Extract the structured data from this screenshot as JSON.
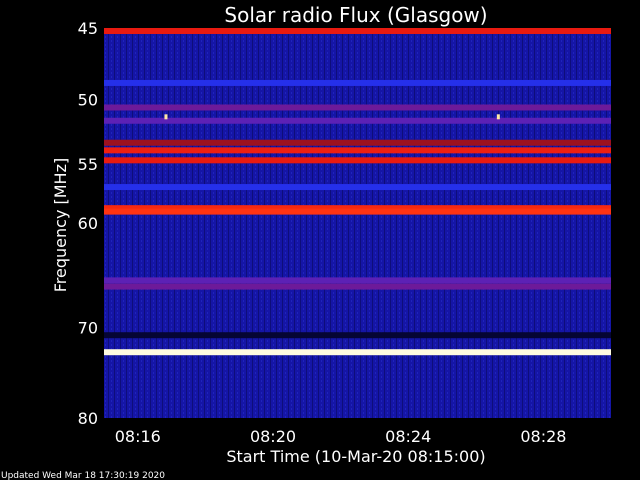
{
  "page": {
    "background": "#000000",
    "text_color": "#ffffff",
    "footer": "Updated Wed Mar 18 17:30:19 2020"
  },
  "chart_data": {
    "type": "heatmap",
    "title": "Solar radio Flux (Glasgow)",
    "xlabel": "Start Time (10-Mar-20 08:15:00)",
    "ylabel": "Frequency [MHz]",
    "x_unit": "time",
    "x_range": [
      "08:15:00",
      "08:30:00"
    ],
    "x_ticks": [
      "08:16",
      "08:20",
      "08:24",
      "08:28"
    ],
    "y_unit": "MHz",
    "y_range": [
      45,
      80
    ],
    "y_log": true,
    "y_ticks": [
      45,
      50,
      55,
      60,
      70,
      80
    ],
    "y_tick_labels": [
      "45",
      "50",
      "55",
      "60",
      "70",
      "80"
    ],
    "grid": false,
    "legend": "none",
    "colormap": [
      "#000010",
      "#0a0a60",
      "#1818b8",
      "#2b3bff",
      "#6a1aa0",
      "#a01018",
      "#e01010",
      "#ff3010",
      "#ffd060",
      "#fffbe0"
    ],
    "background_level": 0.2,
    "bands": [
      {
        "freq_mhz": 45.2,
        "intensity": 0.7
      },
      {
        "freq_mhz": 48.8,
        "intensity": 0.3
      },
      {
        "freq_mhz": 50.6,
        "intensity": 0.45
      },
      {
        "freq_mhz": 51.6,
        "intensity": 0.42
      },
      {
        "freq_mhz": 53.3,
        "intensity": 0.55
      },
      {
        "freq_mhz": 53.9,
        "intensity": 0.72
      },
      {
        "freq_mhz": 54.7,
        "intensity": 0.7
      },
      {
        "freq_mhz": 56.9,
        "intensity": 0.3
      },
      {
        "freq_mhz": 58.7,
        "intensity": 0.75
      },
      {
        "freq_mhz": 59.0,
        "intensity": 0.78
      },
      {
        "freq_mhz": 65.3,
        "intensity": 0.42
      },
      {
        "freq_mhz": 65.9,
        "intensity": 0.45
      },
      {
        "freq_mhz": 70.8,
        "intensity": 0.05
      },
      {
        "freq_mhz": 72.6,
        "intensity": 1.0
      }
    ],
    "spots": [
      {
        "time": "08:16:50",
        "freq_mhz": 51.3,
        "intensity": 0.95
      },
      {
        "time": "08:26:40",
        "freq_mhz": 51.3,
        "intensity": 0.95
      }
    ]
  }
}
